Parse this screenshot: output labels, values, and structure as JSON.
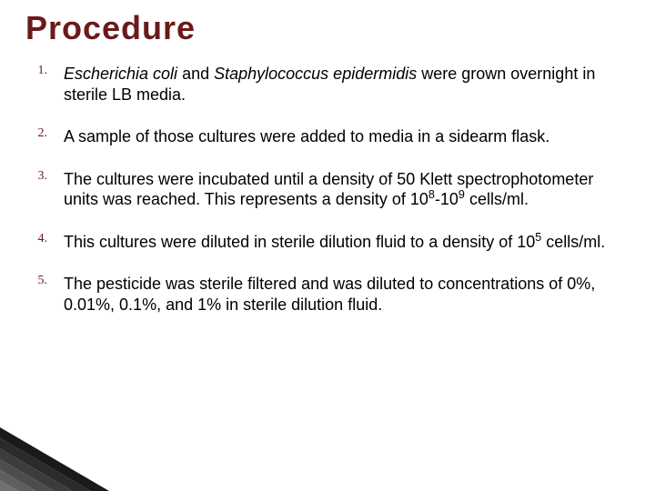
{
  "title": {
    "text": "Procedure",
    "color": "#6a1a1a",
    "fontsize": 36
  },
  "list": {
    "number_color": "#6a1a1a",
    "number_fontsize": 14,
    "body_color": "#000000",
    "body_fontsize": 18,
    "items": [
      {
        "num": "1.",
        "segments": [
          {
            "text": "Escherichia coli",
            "italic": true
          },
          {
            "text": " and "
          },
          {
            "text": "Staphylococcus epidermidis",
            "italic": true
          },
          {
            "text": " were grown overnight in sterile LB media."
          }
        ]
      },
      {
        "num": "2.",
        "segments": [
          {
            "text": "A sample of those cultures were added to media in a sidearm flask."
          }
        ]
      },
      {
        "num": "3.",
        "segments": [
          {
            "text": "The cultures were incubated until a density of 50 Klett spectrophotometer units was reached. This represents a density of 10"
          },
          {
            "text": "8",
            "sup": true
          },
          {
            "text": "-10"
          },
          {
            "text": "9",
            "sup": true
          },
          {
            "text": " cells/ml."
          }
        ]
      },
      {
        "num": "4.",
        "segments": [
          {
            "text": "This cultures were diluted in sterile dilution fluid to a density of 10"
          },
          {
            "text": "5",
            "sup": true
          },
          {
            "text": " cells/ml."
          }
        ]
      },
      {
        "num": "5.",
        "segments": [
          {
            "text": "The pesticide was sterile filtered and was diluted to concentrations of 0%, 0.01%, 0.1%, and 1% in sterile dilution fluid."
          }
        ]
      }
    ]
  },
  "corner": {
    "stripe_colors": [
      "#1a1a1a",
      "#2b2b2b",
      "#3c3c3c",
      "#4d4d4d",
      "#5e5e5e",
      "#707070"
    ]
  }
}
